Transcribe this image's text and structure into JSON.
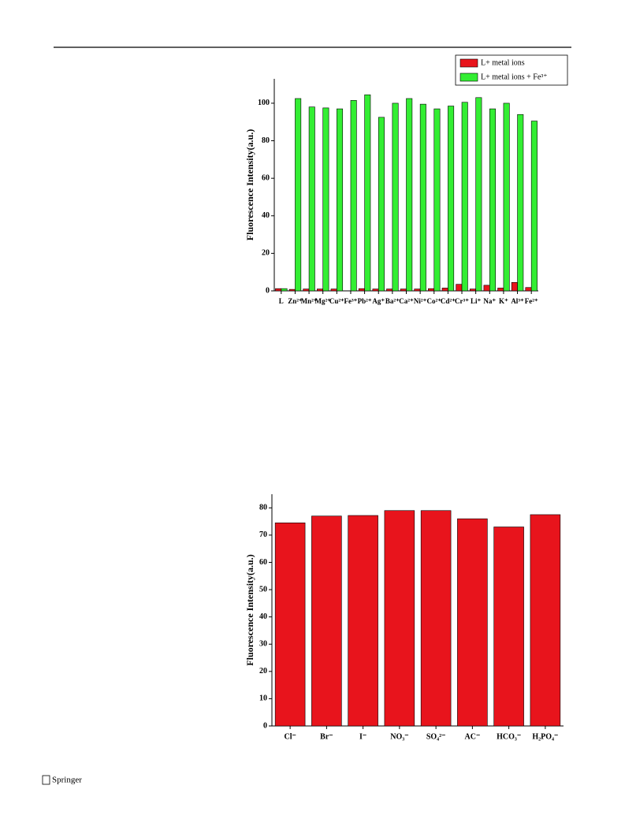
{
  "chart_data": [
    {
      "type": "bar",
      "y_label": "Fluorescence Intensity(a.u.)",
      "categories": [
        "L",
        "Zn²⁺",
        "Mn²⁺",
        "Mg²⁺",
        "Cu²⁺",
        "Fe³⁺",
        "Pb²⁺",
        "Ag⁺",
        "Ba²⁺",
        "Ca²⁺",
        "Ni²⁺",
        "Co²⁺",
        "Cd²⁺",
        "Cr³⁺",
        "Li⁺",
        "Na⁺",
        "K⁺",
        "Al³⁺",
        "Fe²⁺"
      ],
      "series": [
        {
          "name": "L+ metal ions",
          "color": "#e8141c",
          "values": [
            1.2,
            0.8,
            1,
            1,
            1,
            0,
            1.2,
            1,
            1,
            1,
            1,
            1.2,
            1.5,
            3.5,
            1,
            3,
            1.5,
            4.5,
            1.8
          ]
        },
        {
          "name": "L+ metal ions + Fe³⁺",
          "color": "#33ee33",
          "values": [
            1.2,
            102.5,
            98,
            97.5,
            97,
            101.5,
            104.5,
            92.5,
            100,
            102.5,
            99.5,
            97,
            98.5,
            100.5,
            103,
            97,
            100,
            94,
            90.5
          ]
        }
      ],
      "ylim": [
        0,
        113
      ],
      "yticks": [
        0,
        20,
        40,
        60,
        80,
        100
      ],
      "legend": "top-right"
    },
    {
      "type": "bar",
      "y_label": "Fluorescence Intensity(a.u.)",
      "categories": [
        "Cl⁻",
        "Br⁻",
        "I⁻",
        "NO₃⁻",
        "SO₄²⁻",
        "AC⁻",
        "HCO₃⁻",
        "H₂PO₄⁻"
      ],
      "series": [
        {
          "color": "#e8141c",
          "values": [
            74.5,
            77,
            77.2,
            79,
            79,
            76,
            73,
            77.5
          ]
        }
      ],
      "ylim": [
        0,
        85
      ],
      "yticks": [
        0,
        10,
        20,
        30,
        40,
        50,
        60,
        70,
        80
      ]
    }
  ],
  "footer": {
    "publisher": "Springer"
  }
}
